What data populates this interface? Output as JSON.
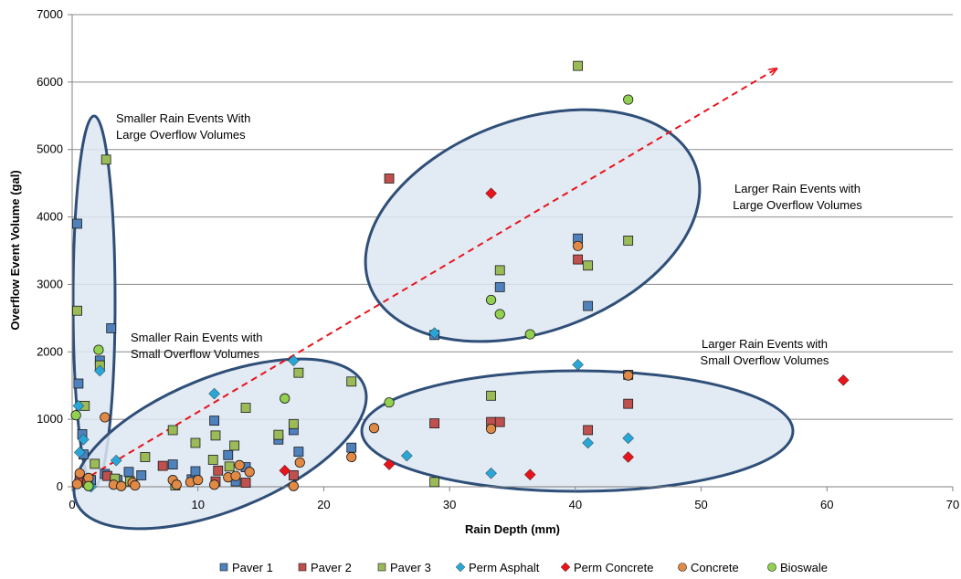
{
  "chart_data": {
    "type": "scatter",
    "xlabel": "Rain Depth (mm)",
    "ylabel": "Overflow Event Volume (gal)",
    "xlim": [
      0,
      70
    ],
    "ylim": [
      0,
      7000
    ],
    "x_ticks": [
      "0",
      "10",
      "20",
      "30",
      "40",
      "50",
      "60",
      "70"
    ],
    "y_ticks": [
      "0",
      "1000",
      "2000",
      "3000",
      "4000",
      "5000",
      "6000",
      "7000"
    ],
    "grid": "horizontal",
    "legend_position": "bottom",
    "series": [
      {
        "name": "Paver 1",
        "marker": "square",
        "color": "#4f81bd",
        "points": [
          [
            0.4,
            3900
          ],
          [
            0.5,
            1530
          ],
          [
            0.8,
            780
          ],
          [
            0.9,
            480
          ],
          [
            1.5,
            100
          ],
          [
            2.2,
            1870
          ],
          [
            2.6,
            190
          ],
          [
            3.1,
            2350
          ],
          [
            3.6,
            100
          ],
          [
            4.5,
            220
          ],
          [
            5.5,
            170
          ],
          [
            8.0,
            330
          ],
          [
            9.5,
            110
          ],
          [
            9.8,
            230
          ],
          [
            11.3,
            980
          ],
          [
            12.4,
            470
          ],
          [
            13.0,
            80
          ],
          [
            13.8,
            290
          ],
          [
            16.4,
            700
          ],
          [
            17.6,
            840
          ],
          [
            18.0,
            520
          ],
          [
            22.2,
            580
          ],
          [
            28.8,
            2250
          ],
          [
            34.0,
            2960
          ],
          [
            40.2,
            3680
          ],
          [
            41.0,
            2680
          ],
          [
            44.2,
            1660
          ]
        ]
      },
      {
        "name": "Paver 2",
        "marker": "square",
        "color": "#c0504d",
        "points": [
          [
            0.6,
            120
          ],
          [
            1.2,
            60
          ],
          [
            2.8,
            160
          ],
          [
            7.2,
            310
          ],
          [
            11.4,
            80
          ],
          [
            11.6,
            240
          ],
          [
            13.8,
            60
          ],
          [
            17.6,
            170
          ],
          [
            25.2,
            4570
          ],
          [
            28.8,
            940
          ],
          [
            33.3,
            960
          ],
          [
            34.0,
            960
          ],
          [
            40.2,
            3370
          ],
          [
            41.0,
            840
          ],
          [
            44.2,
            1230
          ]
        ]
      },
      {
        "name": "Paver 3",
        "marker": "square",
        "color": "#9bbb59",
        "points": [
          [
            0.4,
            2610
          ],
          [
            1.0,
            1200
          ],
          [
            1.8,
            340
          ],
          [
            2.2,
            1800
          ],
          [
            2.7,
            4850
          ],
          [
            3.4,
            120
          ],
          [
            4.6,
            80
          ],
          [
            5.8,
            440
          ],
          [
            8.0,
            840
          ],
          [
            8.2,
            20
          ],
          [
            9.8,
            650
          ],
          [
            11.2,
            400
          ],
          [
            11.4,
            760
          ],
          [
            12.5,
            300
          ],
          [
            12.9,
            610
          ],
          [
            13.8,
            1170
          ],
          [
            16.4,
            770
          ],
          [
            17.6,
            930
          ],
          [
            18.0,
            1690
          ],
          [
            22.2,
            1560
          ],
          [
            28.8,
            70
          ],
          [
            33.3,
            1350
          ],
          [
            34.0,
            3210
          ],
          [
            40.2,
            6240
          ],
          [
            41.0,
            3280
          ],
          [
            44.2,
            3650
          ]
        ]
      },
      {
        "name": "Perm Asphalt",
        "marker": "diamond",
        "color": "#2aa6d6",
        "points": [
          [
            0.5,
            1200
          ],
          [
            0.6,
            510
          ],
          [
            0.9,
            700
          ],
          [
            1.5,
            0
          ],
          [
            2.2,
            1720
          ],
          [
            3.5,
            390
          ],
          [
            11.3,
            1380
          ],
          [
            17.6,
            1870
          ],
          [
            26.6,
            460
          ],
          [
            28.8,
            2280
          ],
          [
            33.3,
            200
          ],
          [
            40.2,
            1810
          ],
          [
            41.0,
            650
          ],
          [
            44.2,
            720
          ]
        ]
      },
      {
        "name": "Perm Concrete",
        "marker": "diamond",
        "color": "#e8141b",
        "points": [
          [
            16.9,
            240
          ],
          [
            25.2,
            330
          ],
          [
            33.3,
            4350
          ],
          [
            36.4,
            180
          ],
          [
            44.2,
            440
          ],
          [
            61.3,
            1580
          ]
        ]
      },
      {
        "name": "Concrete",
        "marker": "circle",
        "color": "#e08a46",
        "points": [
          [
            0.4,
            40
          ],
          [
            0.6,
            200
          ],
          [
            1.3,
            130
          ],
          [
            2.6,
            1030
          ],
          [
            3.3,
            30
          ],
          [
            3.9,
            10
          ],
          [
            4.8,
            60
          ],
          [
            5.0,
            20
          ],
          [
            8.0,
            100
          ],
          [
            8.3,
            30
          ],
          [
            9.4,
            70
          ],
          [
            10.0,
            100
          ],
          [
            11.3,
            30
          ],
          [
            12.4,
            140
          ],
          [
            13.0,
            160
          ],
          [
            13.3,
            320
          ],
          [
            14.1,
            220
          ],
          [
            17.6,
            10
          ],
          [
            18.1,
            360
          ],
          [
            22.2,
            440
          ],
          [
            24.0,
            870
          ],
          [
            33.3,
            860
          ],
          [
            40.2,
            3570
          ],
          [
            44.2,
            1650
          ]
        ]
      },
      {
        "name": "Bioswale",
        "marker": "circle",
        "color": "#92d050",
        "points": [
          [
            0.3,
            1060
          ],
          [
            1.3,
            10
          ],
          [
            2.1,
            2030
          ],
          [
            16.9,
            1310
          ],
          [
            25.2,
            1250
          ],
          [
            33.3,
            2770
          ],
          [
            34.0,
            2560
          ],
          [
            36.4,
            2260
          ],
          [
            44.2,
            5740
          ]
        ]
      }
    ],
    "annotations": [
      {
        "lines": [
          "Smaller Rain Events With",
          "Large Overflow Volumes"
        ]
      },
      {
        "lines": [
          "Smaller Rain Events with",
          "Small Overflow Volumes"
        ]
      },
      {
        "lines": [
          "Larger Rain Events with",
          "Large Overflow Volumes"
        ]
      },
      {
        "lines": [
          "Larger Rain Events with",
          "Small Overflow Volumes"
        ]
      }
    ],
    "trend_arrow": {
      "from": [
        0,
        0
      ],
      "to": [
        56,
        6200
      ],
      "color": "#e8141b",
      "style": "dashed"
    },
    "region_fill": "#dde6f2",
    "region_stroke": "#2f4f78"
  }
}
